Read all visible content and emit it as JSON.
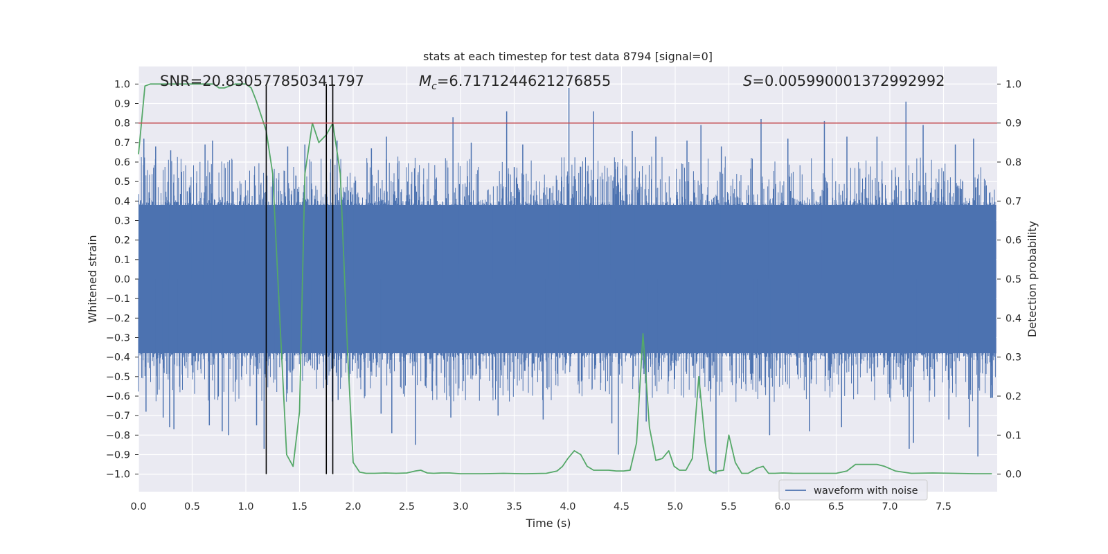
{
  "chart_data": {
    "type": "line",
    "title": "stats at each timestep for test data 8794 [signal=0]",
    "xlabel": "Time (s)",
    "ylabel_left": "Whitened strain",
    "ylabel_right": "Detection probability",
    "xlim": [
      0.0,
      8.0
    ],
    "ylim_left": [
      -1.09,
      1.09
    ],
    "ylim_right": [
      -0.045,
      1.045
    ],
    "xticks": [
      "0.0",
      "0.5",
      "1.0",
      "1.5",
      "2.0",
      "2.5",
      "3.0",
      "3.5",
      "4.0",
      "4.5",
      "5.0",
      "5.5",
      "6.0",
      "6.5",
      "7.0",
      "7.5"
    ],
    "xtick_values": [
      0.0,
      0.5,
      1.0,
      1.5,
      2.0,
      2.5,
      3.0,
      3.5,
      4.0,
      4.5,
      5.0,
      5.5,
      6.0,
      6.5,
      7.0,
      7.5
    ],
    "yticks_left": [
      "1.0",
      "0.9",
      "0.8",
      "0.7",
      "0.6",
      "0.5",
      "0.4",
      "0.3",
      "0.2",
      "0.1",
      "0.0",
      "−0.1",
      "−0.2",
      "−0.3",
      "−0.4",
      "−0.5",
      "−0.6",
      "−0.7",
      "−0.8",
      "−0.9",
      "−1.0"
    ],
    "ytick_values_left": [
      1.0,
      0.9,
      0.8,
      0.7,
      0.6,
      0.5,
      0.4,
      0.3,
      0.2,
      0.1,
      0.0,
      -0.1,
      -0.2,
      -0.3,
      -0.4,
      -0.5,
      -0.6,
      -0.7,
      -0.8,
      -0.9,
      -1.0
    ],
    "yticks_right": [
      "1.0",
      "0.9",
      "0.8",
      "0.7",
      "0.6",
      "0.5",
      "0.4",
      "0.3",
      "0.2",
      "0.1",
      "0.0"
    ],
    "ytick_values_right": [
      1.0,
      0.9,
      0.8,
      0.7,
      0.6,
      0.5,
      0.4,
      0.3,
      0.2,
      0.1,
      0.0
    ],
    "annotations": {
      "snr": "SNR=20.830577850341797",
      "mc_symbol": "M",
      "mc_subscript": "c",
      "mc_value": "=6.7171244621276855",
      "s_symbol": "S",
      "s_value": "=0.005990001372992992"
    },
    "legend": {
      "label": "waveform with noise",
      "position": "lower-right"
    },
    "threshold": {
      "value": 0.9,
      "axis": "right",
      "color": "#c44e52"
    },
    "vertical_markers": [
      1.19,
      1.75,
      1.81
    ],
    "waveform": {
      "name": "waveform with noise",
      "color": "#4c72b0",
      "core_amplitude": 0.38,
      "typical_peak": 0.55,
      "spikes_up": [
        {
          "t": 0.05,
          "v": 0.72
        },
        {
          "t": 0.16,
          "v": 0.68
        },
        {
          "t": 0.3,
          "v": 0.66
        },
        {
          "t": 0.62,
          "v": 0.69
        },
        {
          "t": 0.69,
          "v": 0.71
        },
        {
          "t": 1.39,
          "v": 0.68
        },
        {
          "t": 1.55,
          "v": 0.69
        },
        {
          "t": 1.85,
          "v": 0.71
        },
        {
          "t": 2.17,
          "v": 0.67
        },
        {
          "t": 2.31,
          "v": 0.73
        },
        {
          "t": 2.93,
          "v": 0.83
        },
        {
          "t": 3.1,
          "v": 0.7
        },
        {
          "t": 3.43,
          "v": 0.86
        },
        {
          "t": 3.58,
          "v": 0.69
        },
        {
          "t": 4.01,
          "v": 0.98
        },
        {
          "t": 4.24,
          "v": 0.86
        },
        {
          "t": 4.6,
          "v": 0.76
        },
        {
          "t": 4.82,
          "v": 0.73
        },
        {
          "t": 5.11,
          "v": 0.71
        },
        {
          "t": 5.24,
          "v": 0.79
        },
        {
          "t": 5.43,
          "v": 0.68
        },
        {
          "t": 5.8,
          "v": 0.82
        },
        {
          "t": 6.05,
          "v": 0.72
        },
        {
          "t": 6.39,
          "v": 0.81
        },
        {
          "t": 6.6,
          "v": 0.73
        },
        {
          "t": 6.88,
          "v": 0.73
        },
        {
          "t": 7.15,
          "v": 0.91
        },
        {
          "t": 7.31,
          "v": 0.79
        },
        {
          "t": 7.61,
          "v": 0.69
        },
        {
          "t": 7.78,
          "v": 0.72
        }
      ],
      "spikes_down": [
        {
          "t": 0.07,
          "v": -0.68
        },
        {
          "t": 0.23,
          "v": -0.71
        },
        {
          "t": 0.29,
          "v": -0.76
        },
        {
          "t": 0.33,
          "v": -0.77
        },
        {
          "t": 0.66,
          "v": -0.75
        },
        {
          "t": 0.78,
          "v": -0.78
        },
        {
          "t": 0.84,
          "v": -0.8
        },
        {
          "t": 1.1,
          "v": -0.75
        },
        {
          "t": 1.17,
          "v": -0.87
        },
        {
          "t": 1.43,
          "v": -0.58
        },
        {
          "t": 1.86,
          "v": -0.62
        },
        {
          "t": 2.26,
          "v": -0.69
        },
        {
          "t": 2.36,
          "v": -0.79
        },
        {
          "t": 2.58,
          "v": -0.85
        },
        {
          "t": 2.91,
          "v": -0.71
        },
        {
          "t": 3.35,
          "v": -0.7
        },
        {
          "t": 3.77,
          "v": -0.72
        },
        {
          "t": 4.41,
          "v": -0.74
        },
        {
          "t": 4.47,
          "v": -0.9
        },
        {
          "t": 4.73,
          "v": -0.73
        },
        {
          "t": 5.38,
          "v": -1.0
        },
        {
          "t": 5.88,
          "v": -0.8
        },
        {
          "t": 6.25,
          "v": -0.78
        },
        {
          "t": 6.55,
          "v": -0.76
        },
        {
          "t": 7.18,
          "v": -0.87
        },
        {
          "t": 7.22,
          "v": -0.84
        },
        {
          "t": 7.55,
          "v": -0.72
        },
        {
          "t": 7.74,
          "v": -0.76
        },
        {
          "t": 7.82,
          "v": -0.91
        },
        {
          "t": 7.94,
          "v": -0.61
        }
      ]
    },
    "probability": {
      "name": "detection probability",
      "color": "#55a868",
      "t": [
        0.0,
        0.06,
        0.11,
        0.2,
        0.3,
        0.4,
        0.5,
        0.6,
        0.7,
        0.75,
        0.8,
        0.85,
        0.9,
        0.95,
        1.0,
        1.05,
        1.1,
        1.19,
        1.25,
        1.32,
        1.38,
        1.44,
        1.5,
        1.55,
        1.62,
        1.68,
        1.75,
        1.81,
        1.88,
        1.95,
        2.0,
        2.06,
        2.12,
        2.2,
        2.3,
        2.4,
        2.5,
        2.58,
        2.63,
        2.69,
        2.75,
        2.82,
        2.9,
        3.0,
        3.2,
        3.4,
        3.6,
        3.8,
        3.9,
        3.95,
        4.0,
        4.06,
        4.12,
        4.18,
        4.24,
        4.3,
        4.38,
        4.45,
        4.52,
        4.58,
        4.64,
        4.7,
        4.76,
        4.82,
        4.88,
        4.94,
        4.99,
        5.04,
        5.1,
        5.16,
        5.22,
        5.28,
        5.32,
        5.36,
        5.4,
        5.45,
        5.5,
        5.56,
        5.62,
        5.68,
        5.76,
        5.82,
        5.87,
        5.93,
        6.0,
        6.1,
        6.2,
        6.35,
        6.5,
        6.6,
        6.68,
        6.8,
        6.88,
        6.95,
        7.05,
        7.2,
        7.4,
        7.6,
        7.8,
        7.95
      ],
      "p": [
        0.82,
        0.995,
        1.0,
        1.0,
        1.0,
        1.0,
        1.0,
        1.0,
        1.0,
        0.99,
        0.99,
        0.995,
        1.0,
        1.0,
        1.0,
        0.99,
        0.955,
        0.88,
        0.77,
        0.38,
        0.05,
        0.02,
        0.16,
        0.77,
        0.9,
        0.85,
        0.87,
        0.9,
        0.77,
        0.3,
        0.03,
        0.005,
        0.002,
        0.002,
        0.003,
        0.002,
        0.003,
        0.008,
        0.01,
        0.003,
        0.002,
        0.003,
        0.003,
        0.001,
        0.001,
        0.002,
        0.001,
        0.002,
        0.008,
        0.02,
        0.04,
        0.06,
        0.05,
        0.02,
        0.01,
        0.01,
        0.01,
        0.008,
        0.008,
        0.01,
        0.08,
        0.36,
        0.12,
        0.035,
        0.04,
        0.06,
        0.02,
        0.01,
        0.01,
        0.04,
        0.25,
        0.08,
        0.01,
        0.003,
        0.008,
        0.01,
        0.1,
        0.03,
        0.002,
        0.002,
        0.015,
        0.02,
        0.002,
        0.002,
        0.003,
        0.002,
        0.002,
        0.002,
        0.002,
        0.008,
        0.025,
        0.025,
        0.025,
        0.02,
        0.008,
        0.002,
        0.003,
        0.002,
        0.001,
        0.001
      ]
    }
  }
}
